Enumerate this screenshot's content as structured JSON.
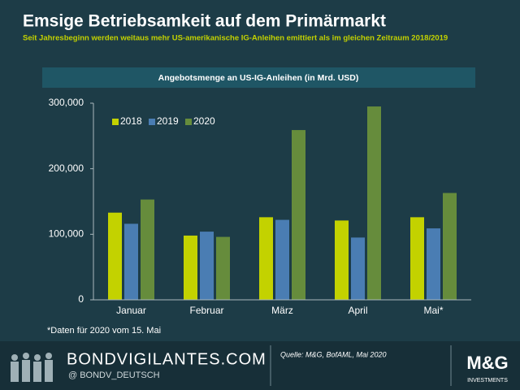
{
  "chart_data": {
    "type": "bar",
    "title": "Emsige Betriebsamkeit auf dem Primärmarkt",
    "subtitle": "Seit Jahresbeginn werden weitaus mehr US-amerikanische IG-Anleihen emittiert als im gleichen Zeitraum 2018/2019",
    "panel_title": "Angebotsmenge  an US-IG-Anleihen  (in Mrd. USD)",
    "categories": [
      "Januar",
      "Februar",
      "März",
      "April",
      "Mai*"
    ],
    "series": [
      {
        "name": "2018",
        "color": "#c3d200",
        "values": [
          133000,
          98000,
          126000,
          121000,
          126000
        ]
      },
      {
        "name": "2019",
        "color": "#4a7db3",
        "values": [
          116000,
          104000,
          122000,
          95000,
          109000
        ]
      },
      {
        "name": "2020",
        "color": "#668c3c",
        "values": [
          153000,
          96000,
          259000,
          295000,
          163000
        ]
      }
    ],
    "ylim": [
      0,
      300000
    ],
    "yticks": [
      0,
      {
        "value": 100000,
        "label": "100,000"
      },
      {
        "value": 200000,
        "label": "200,000"
      },
      {
        "value": 300000,
        "label": "300,000"
      }
    ],
    "grid": false,
    "legend": "top-left",
    "footnote": "*Daten für 2020 vom 15. Mai"
  },
  "footer": {
    "site": "BONDVIGILANTES.COM",
    "twitter": "@ BONDV_DEUTSCH",
    "source": "Quelle: M&G, BofAML, Mai 2020",
    "logo": "M&G",
    "logo_sub": "INVESTMENTS"
  }
}
